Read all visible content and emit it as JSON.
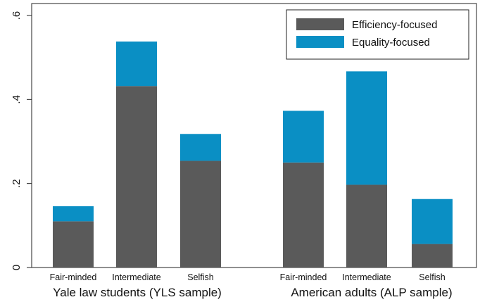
{
  "chart_data": {
    "type": "bar",
    "stacked": true,
    "groups": [
      {
        "label": "Yale law students (YLS sample)",
        "categories": [
          "Fair-minded",
          "Intermediate",
          "Selfish"
        ]
      },
      {
        "label": "American adults (ALP sample)",
        "categories": [
          "Fair-minded",
          "Intermediate",
          "Selfish"
        ]
      }
    ],
    "series": [
      {
        "name": "Efficiency-focused",
        "color": "#5a5a5a",
        "values": [
          [
            0.11,
            0.432,
            0.254
          ],
          [
            0.25,
            0.197,
            0.056
          ]
        ]
      },
      {
        "name": "Equality-focused",
        "color": "#0a8fc4",
        "values": [
          [
            0.036,
            0.106,
            0.064
          ],
          [
            0.123,
            0.27,
            0.107
          ]
        ]
      }
    ],
    "yticks": [
      {
        "value": 0,
        "label": "0"
      },
      {
        "value": 0.2,
        "label": ".2"
      },
      {
        "value": 0.4,
        "label": ".4"
      },
      {
        "value": 0.6,
        "label": ".6"
      }
    ],
    "ylim": [
      0,
      0.6
    ],
    "legend_position": "top-right",
    "grid": false
  }
}
